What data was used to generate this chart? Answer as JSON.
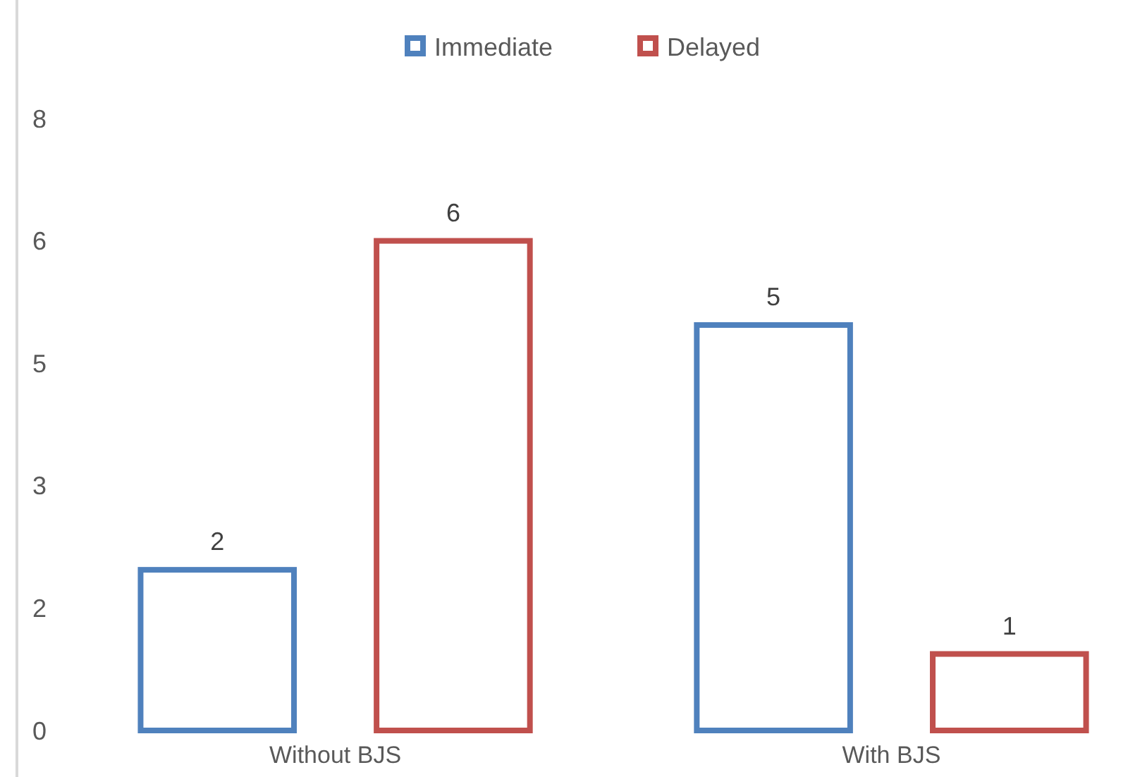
{
  "chart_data": {
    "type": "bar",
    "categories": [
      "Without BJS",
      "With BJS"
    ],
    "series": [
      {
        "name": "Immediate",
        "color": "#4f81bd",
        "values": [
          2.1,
          5.3
        ],
        "value_labels": [
          "2",
          "5"
        ]
      },
      {
        "name": "Delayed",
        "color": "#c0504d",
        "values": [
          6.4,
          1.0
        ],
        "value_labels": [
          "6",
          "1"
        ]
      }
    ],
    "ylim": [
      0,
      8
    ],
    "yticks": [
      0,
      {
        "value": 1.6,
        "label": "2"
      },
      {
        "value": 3.2,
        "label": "3"
      },
      {
        "value": 4.8,
        "label": "5"
      },
      {
        "value": 6.4,
        "label": "6"
      },
      8
    ],
    "grid": false,
    "legend": "top"
  }
}
